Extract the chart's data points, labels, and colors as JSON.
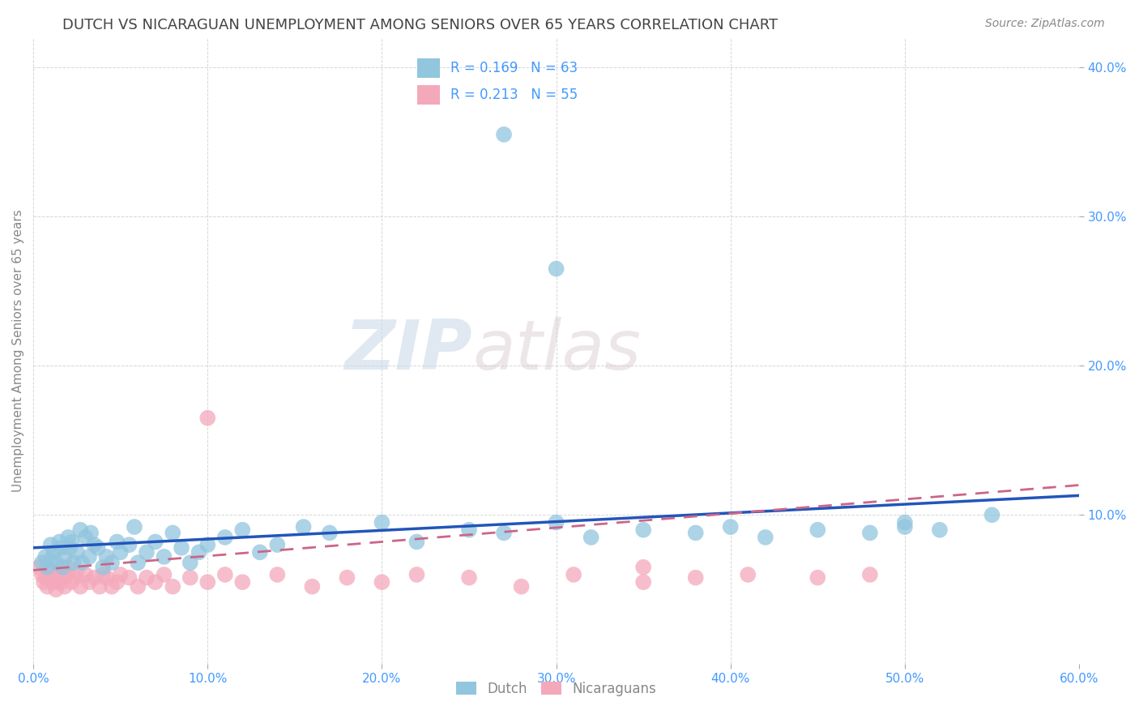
{
  "title": "DUTCH VS NICARAGUAN UNEMPLOYMENT AMONG SENIORS OVER 65 YEARS CORRELATION CHART",
  "source": "Source: ZipAtlas.com",
  "ylabel": "Unemployment Among Seniors over 65 years",
  "xlim": [
    0.0,
    0.6
  ],
  "ylim": [
    0.0,
    0.42
  ],
  "xticks": [
    0.0,
    0.1,
    0.2,
    0.3,
    0.4,
    0.5,
    0.6
  ],
  "xticklabels": [
    "0.0%",
    "10.0%",
    "20.0%",
    "30.0%",
    "40.0%",
    "50.0%",
    "60.0%"
  ],
  "yticks": [
    0.1,
    0.2,
    0.3,
    0.4
  ],
  "yticklabels": [
    "10.0%",
    "20.0%",
    "30.0%",
    "40.0%"
  ],
  "dutch_R": 0.169,
  "dutch_N": 63,
  "nicaraguan_R": 0.213,
  "nicaraguan_N": 55,
  "dutch_color": "#92C5DE",
  "nicaraguan_color": "#F4A9BB",
  "dutch_line_color": "#2255BB",
  "nicaraguan_line_color": "#CC6688",
  "background_color": "#FFFFFF",
  "grid_color": "#CCCCCC",
  "title_color": "#444444",
  "axis_label_color": "#888888",
  "tick_label_color": "#4499FF",
  "legend_R_color": "#4499FF",
  "watermark_zip": "ZIP",
  "watermark_atlas": "atlas",
  "dutch_x": [
    0.005,
    0.007,
    0.008,
    0.01,
    0.01,
    0.012,
    0.013,
    0.015,
    0.016,
    0.017,
    0.018,
    0.02,
    0.021,
    0.022,
    0.023,
    0.025,
    0.027,
    0.028,
    0.03,
    0.032,
    0.033,
    0.035,
    0.037,
    0.04,
    0.042,
    0.045,
    0.048,
    0.05,
    0.055,
    0.058,
    0.06,
    0.065,
    0.07,
    0.075,
    0.08,
    0.085,
    0.09,
    0.095,
    0.1,
    0.11,
    0.12,
    0.13,
    0.14,
    0.155,
    0.17,
    0.2,
    0.22,
    0.25,
    0.27,
    0.3,
    0.32,
    0.35,
    0.38,
    0.4,
    0.42,
    0.45,
    0.48,
    0.5,
    0.52,
    0.55,
    0.27,
    0.3,
    0.5
  ],
  "dutch_y": [
    0.068,
    0.072,
    0.065,
    0.08,
    0.07,
    0.075,
    0.068,
    0.082,
    0.078,
    0.065,
    0.072,
    0.085,
    0.078,
    0.082,
    0.068,
    0.075,
    0.09,
    0.068,
    0.085,
    0.072,
    0.088,
    0.08,
    0.078,
    0.065,
    0.072,
    0.068,
    0.082,
    0.075,
    0.08,
    0.092,
    0.068,
    0.075,
    0.082,
    0.072,
    0.088,
    0.078,
    0.068,
    0.075,
    0.08,
    0.085,
    0.09,
    0.075,
    0.08,
    0.092,
    0.088,
    0.095,
    0.082,
    0.09,
    0.088,
    0.095,
    0.085,
    0.09,
    0.088,
    0.092,
    0.085,
    0.09,
    0.088,
    0.095,
    0.09,
    0.1,
    0.355,
    0.265,
    0.092
  ],
  "nicaraguan_x": [
    0.003,
    0.005,
    0.006,
    0.007,
    0.008,
    0.009,
    0.01,
    0.011,
    0.012,
    0.013,
    0.014,
    0.015,
    0.016,
    0.017,
    0.018,
    0.019,
    0.02,
    0.022,
    0.024,
    0.025,
    0.027,
    0.03,
    0.032,
    0.035,
    0.038,
    0.04,
    0.042,
    0.045,
    0.048,
    0.05,
    0.055,
    0.06,
    0.065,
    0.07,
    0.075,
    0.08,
    0.09,
    0.1,
    0.11,
    0.12,
    0.14,
    0.16,
    0.18,
    0.2,
    0.22,
    0.25,
    0.28,
    0.31,
    0.35,
    0.38,
    0.41,
    0.45,
    0.48,
    0.1,
    0.35
  ],
  "nicaraguan_y": [
    0.065,
    0.06,
    0.055,
    0.058,
    0.052,
    0.058,
    0.062,
    0.055,
    0.058,
    0.05,
    0.055,
    0.062,
    0.055,
    0.058,
    0.052,
    0.06,
    0.065,
    0.055,
    0.058,
    0.062,
    0.052,
    0.06,
    0.055,
    0.058,
    0.052,
    0.06,
    0.058,
    0.052,
    0.055,
    0.06,
    0.058,
    0.052,
    0.058,
    0.055,
    0.06,
    0.052,
    0.058,
    0.055,
    0.06,
    0.055,
    0.06,
    0.052,
    0.058,
    0.055,
    0.06,
    0.058,
    0.052,
    0.06,
    0.055,
    0.058,
    0.06,
    0.058,
    0.06,
    0.165,
    0.065
  ],
  "dutch_line_x0": 0.0,
  "dutch_line_y0": 0.078,
  "dutch_line_x1": 0.6,
  "dutch_line_y1": 0.113,
  "nic_line_x0": 0.0,
  "nic_line_y0": 0.063,
  "nic_line_x1": 0.6,
  "nic_line_y1": 0.12
}
